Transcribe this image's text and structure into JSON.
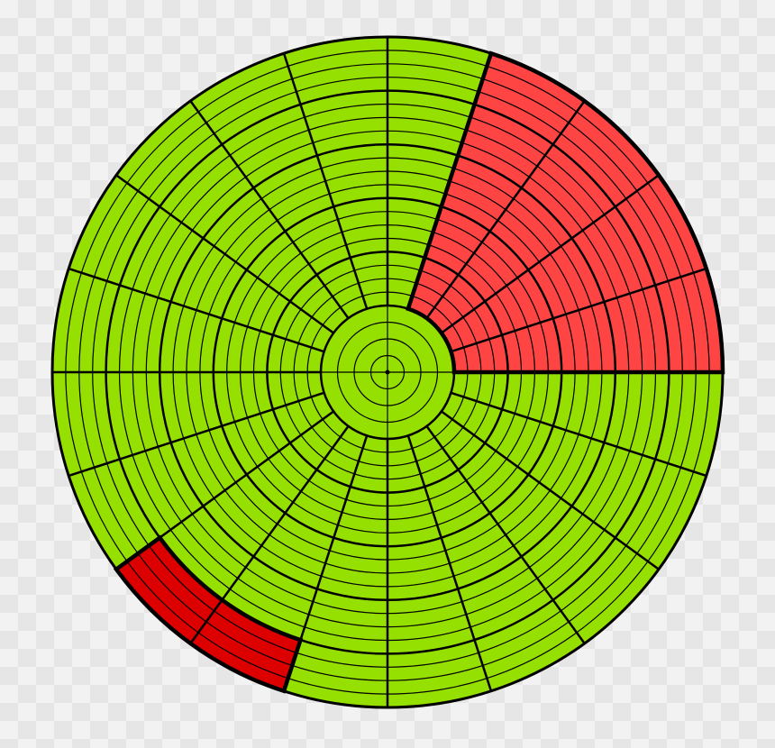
{
  "diagram": {
    "type": "polar-segmented-disc",
    "center_disc": {
      "ring_count": 4,
      "fill": "#95e000"
    },
    "outer_zone": {
      "sector_count": 20,
      "thin_rings_per_band": 3,
      "thick_bands": 5
    },
    "colors": {
      "base": "#95e000",
      "highlight_red": "#ff4444",
      "highlight_dark_red": "#dd0000",
      "stroke": "#000000"
    },
    "highlights": [
      {
        "name": "upper-right-red-block",
        "color": "#ff4444",
        "start_deg": 0,
        "end_deg": 72,
        "band_from": 0,
        "band_to": 5
      },
      {
        "name": "lower-left-dark-red-block",
        "color": "#dd0000",
        "start_deg": 216,
        "end_deg": 252,
        "band_from": 4,
        "band_to": 5
      }
    ]
  }
}
